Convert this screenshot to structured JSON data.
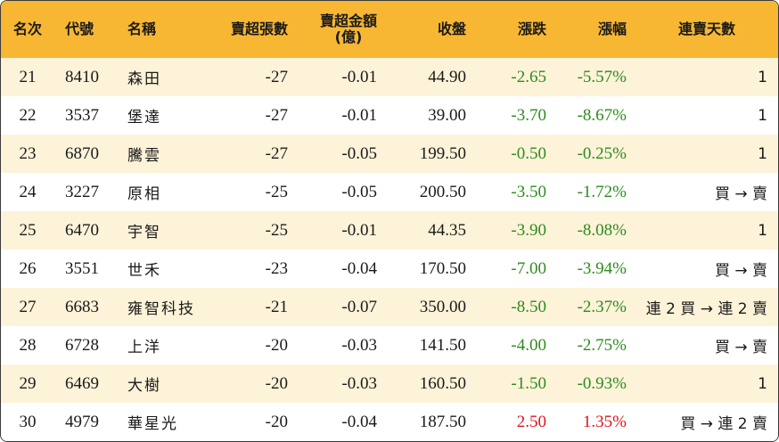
{
  "headers": {
    "rank": "名次",
    "code": "代號",
    "name": "名稱",
    "sell_lots": "賣超張數",
    "sell_amount_line1": "賣超金額",
    "sell_amount_line2": "(億)",
    "close": "收盤",
    "change": "漲跌",
    "change_pct": "漲幅",
    "consec_days": "連賣天數"
  },
  "colors": {
    "header_bg": "#f7b733",
    "odd_row_bg": "#fdf3d9",
    "even_row_bg": "#ffffff",
    "down_color": "#2e8b1e",
    "up_color": "#e0141e"
  },
  "rows": [
    {
      "rank": "21",
      "code": "8410",
      "name": "森田",
      "sell_lots": "-27",
      "sell_amount": "-0.01",
      "close": "44.90",
      "change": "-2.65",
      "change_pct": "-5.57%",
      "direction": "down",
      "consec_days": "1"
    },
    {
      "rank": "22",
      "code": "3537",
      "name": "堡達",
      "sell_lots": "-27",
      "sell_amount": "-0.01",
      "close": "39.00",
      "change": "-3.70",
      "change_pct": "-8.67%",
      "direction": "down",
      "consec_days": "1"
    },
    {
      "rank": "23",
      "code": "6870",
      "name": "騰雲",
      "sell_lots": "-27",
      "sell_amount": "-0.05",
      "close": "199.50",
      "change": "-0.50",
      "change_pct": "-0.25%",
      "direction": "down",
      "consec_days": "1"
    },
    {
      "rank": "24",
      "code": "3227",
      "name": "原相",
      "sell_lots": "-25",
      "sell_amount": "-0.05",
      "close": "200.50",
      "change": "-3.50",
      "change_pct": "-1.72%",
      "direction": "down",
      "consec_days": "買 → 賣"
    },
    {
      "rank": "25",
      "code": "6470",
      "name": "宇智",
      "sell_lots": "-25",
      "sell_amount": "-0.01",
      "close": "44.35",
      "change": "-3.90",
      "change_pct": "-8.08%",
      "direction": "down",
      "consec_days": "1"
    },
    {
      "rank": "26",
      "code": "3551",
      "name": "世禾",
      "sell_lots": "-23",
      "sell_amount": "-0.04",
      "close": "170.50",
      "change": "-7.00",
      "change_pct": "-3.94%",
      "direction": "down",
      "consec_days": "買 → 賣"
    },
    {
      "rank": "27",
      "code": "6683",
      "name": "雍智科技",
      "sell_lots": "-21",
      "sell_amount": "-0.07",
      "close": "350.00",
      "change": "-8.50",
      "change_pct": "-2.37%",
      "direction": "down",
      "consec_days": "連 2 買 → 連 2 賣"
    },
    {
      "rank": "28",
      "code": "6728",
      "name": "上洋",
      "sell_lots": "-20",
      "sell_amount": "-0.03",
      "close": "141.50",
      "change": "-4.00",
      "change_pct": "-2.75%",
      "direction": "down",
      "consec_days": "買 → 賣"
    },
    {
      "rank": "29",
      "code": "6469",
      "name": "大樹",
      "sell_lots": "-20",
      "sell_amount": "-0.03",
      "close": "160.50",
      "change": "-1.50",
      "change_pct": "-0.93%",
      "direction": "down",
      "consec_days": "1"
    },
    {
      "rank": "30",
      "code": "4979",
      "name": "華星光",
      "sell_lots": "-20",
      "sell_amount": "-0.04",
      "close": "187.50",
      "change": "2.50",
      "change_pct": "1.35%",
      "direction": "up",
      "consec_days": "買 → 連 2 賣"
    }
  ]
}
